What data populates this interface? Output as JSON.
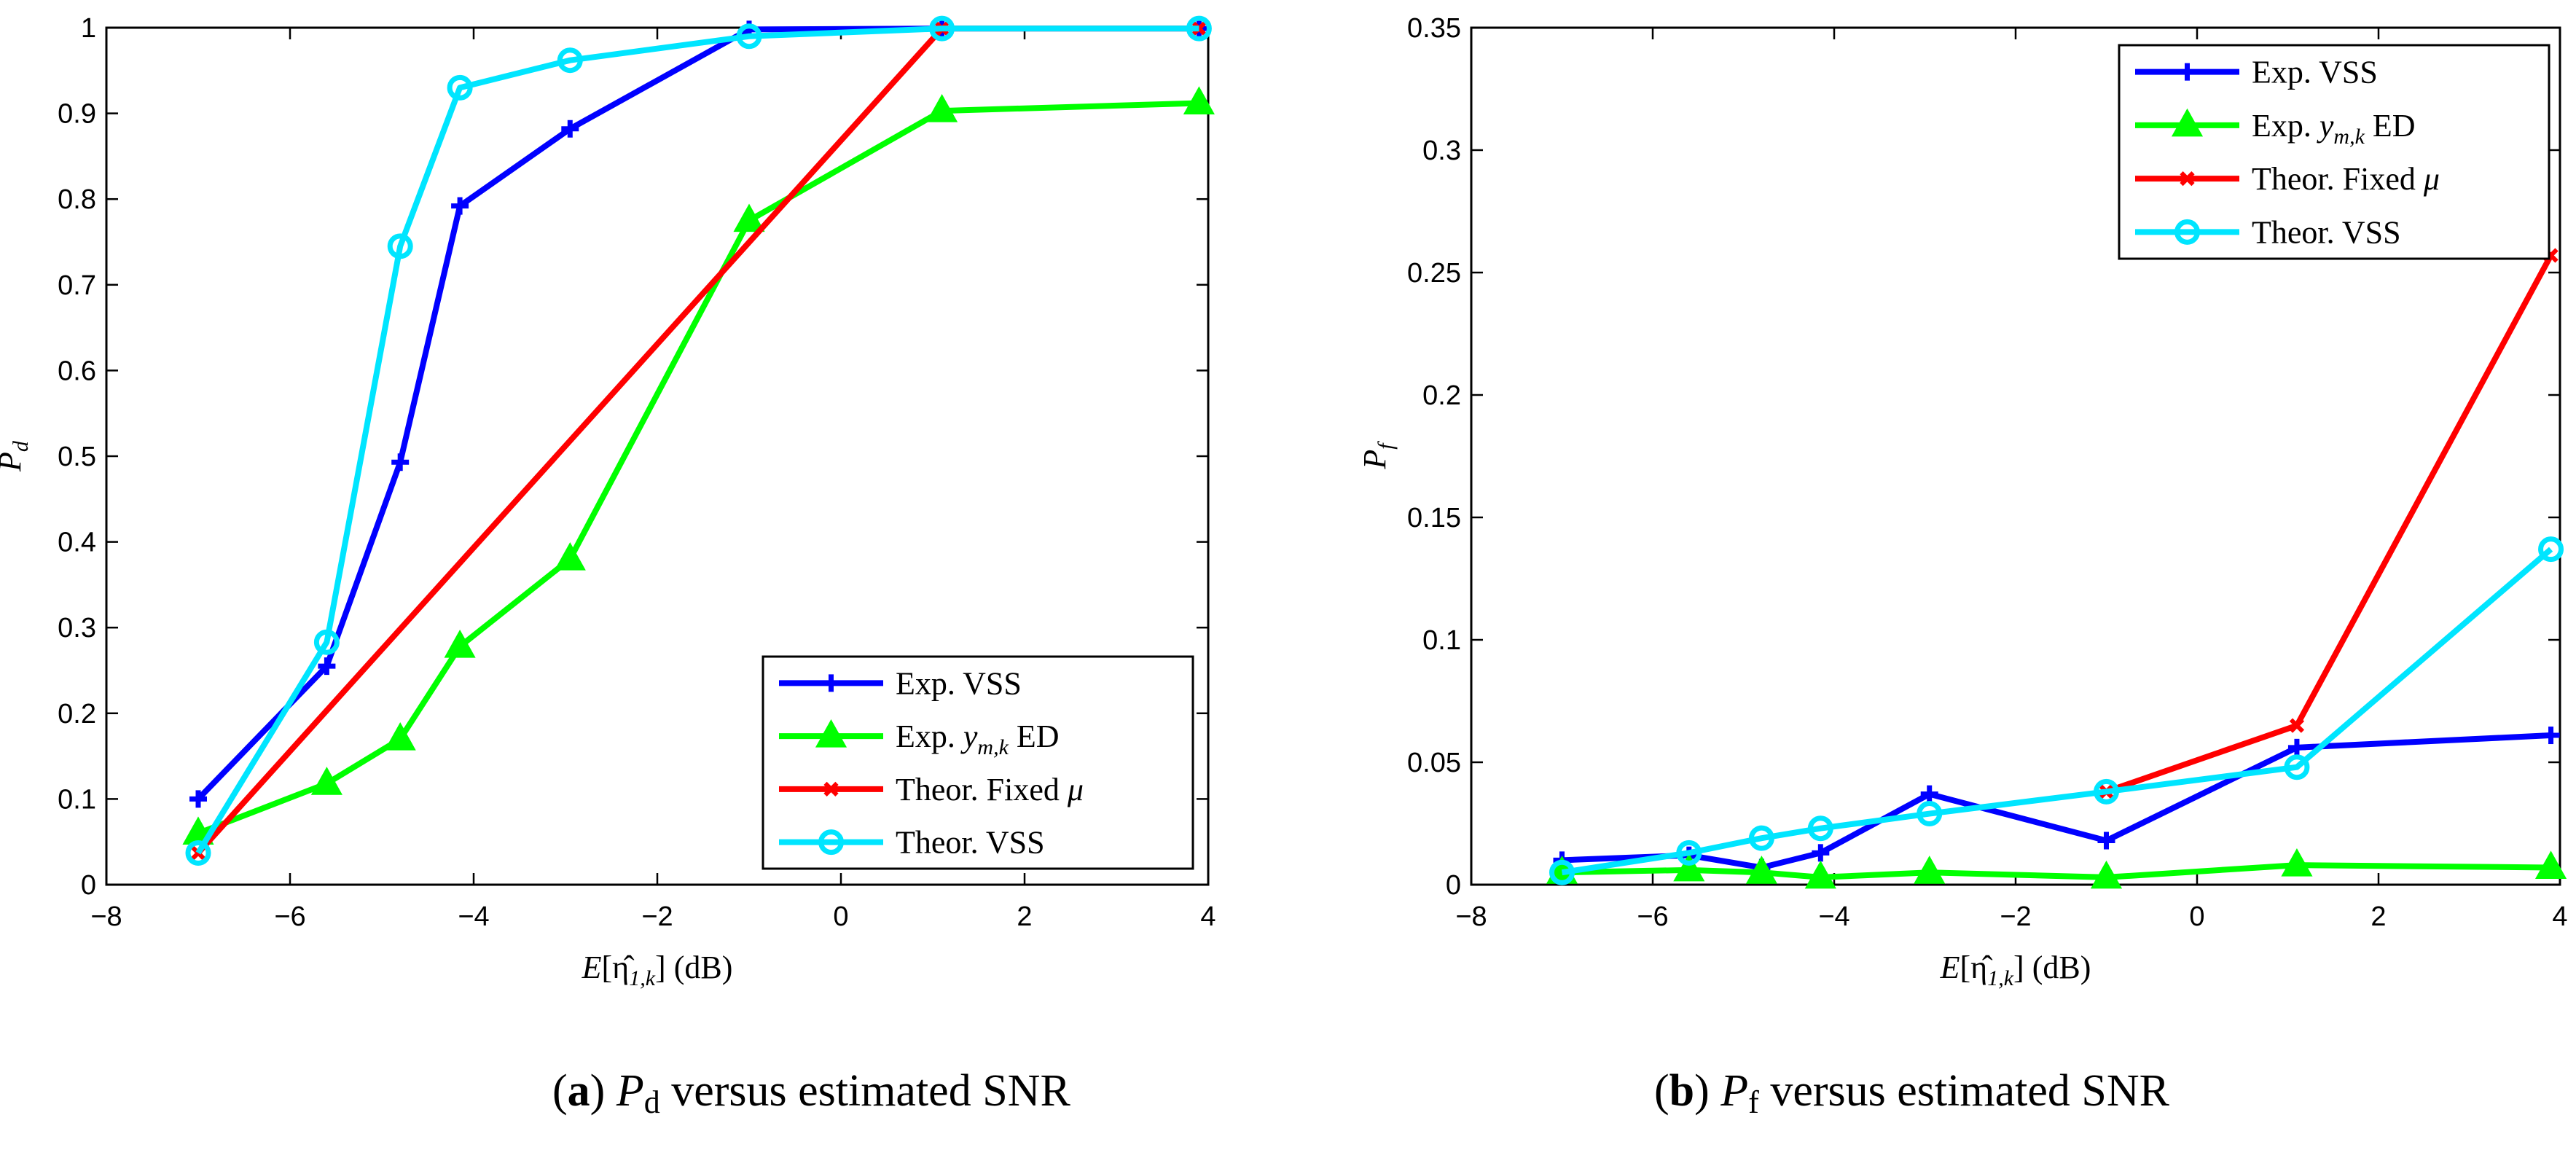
{
  "chart_data": [
    {
      "type": "line",
      "title": "",
      "xlabel": "E[η̂1,k] (dB)",
      "ylabel": "Pd",
      "xlim": [
        -8,
        4
      ],
      "ylim": [
        0,
        1
      ],
      "xticks": [
        -8,
        -6,
        -4,
        -2,
        0,
        2,
        4
      ],
      "yticks": [
        0,
        0.1,
        0.2,
        0.3,
        0.4,
        0.5,
        0.6,
        0.7,
        0.8,
        0.9,
        1
      ],
      "legend_position": "bottom-right",
      "series": [
        {
          "name": "Exp.  VSS",
          "color": "#0000ff",
          "marker": "plus",
          "x": [
            -7.0,
            -5.6,
            -4.8,
            -4.15,
            -2.95,
            -1.0,
            1.1,
            3.9
          ],
          "y": [
            0.1,
            0.255,
            0.493,
            0.792,
            0.882,
            0.998,
            0.999,
            0.999
          ]
        },
        {
          "name": "Exp.  y m,k  ED",
          "color": "#00ff00",
          "marker": "triangle",
          "x": [
            -7.0,
            -5.6,
            -4.8,
            -4.15,
            -2.95,
            -1.0,
            1.1,
            3.9
          ],
          "y": [
            0.06,
            0.118,
            0.17,
            0.278,
            0.38,
            0.775,
            0.903,
            0.912
          ]
        },
        {
          "name": "Theor.  Fixed μ",
          "color": "#ff0000",
          "marker": "x",
          "x": [
            -7.0,
            1.1,
            3.9
          ],
          "y": [
            0.037,
            0.999,
            0.999
          ]
        },
        {
          "name": "Theor.  VSS",
          "color": "#00e5ff",
          "marker": "circle",
          "x": [
            -7.0,
            -5.6,
            -4.8,
            -4.15,
            -2.95,
            -1.0,
            1.1,
            3.9
          ],
          "y": [
            0.037,
            0.283,
            0.745,
            0.93,
            0.962,
            0.99,
            0.999,
            0.999
          ]
        }
      ]
    },
    {
      "type": "line",
      "title": "",
      "xlabel": "E[η̂1,k] (dB)",
      "ylabel": "Pf",
      "xlim": [
        -8,
        4
      ],
      "ylim": [
        0,
        0.35
      ],
      "xticks": [
        -8,
        -6,
        -4,
        -2,
        0,
        2,
        4
      ],
      "yticks": [
        0,
        0.05,
        0.1,
        0.15,
        0.2,
        0.25,
        0.3,
        0.35
      ],
      "legend_position": "top-right",
      "series": [
        {
          "name": "Exp.  VSS",
          "color": "#0000ff",
          "marker": "plus",
          "x": [
            -7.0,
            -5.6,
            -4.8,
            -4.15,
            -2.95,
            -1.0,
            1.1,
            3.9
          ],
          "y": [
            0.01,
            0.012,
            0.007,
            0.013,
            0.037,
            0.018,
            0.056,
            0.061
          ]
        },
        {
          "name": "Exp.  y m,k  ED",
          "color": "#00ff00",
          "marker": "triangle",
          "x": [
            -7.0,
            -5.6,
            -4.8,
            -4.15,
            -2.95,
            -1.0,
            1.1,
            3.9
          ],
          "y": [
            0.005,
            0.006,
            0.005,
            0.003,
            0.005,
            0.003,
            0.008,
            0.007
          ]
        },
        {
          "name": "Theor.  Fixed μ",
          "color": "#ff0000",
          "marker": "x",
          "x": [
            -1.0,
            1.1,
            3.9
          ],
          "y": [
            0.038,
            0.065,
            0.257
          ]
        },
        {
          "name": "Theor.  VSS",
          "color": "#00e5ff",
          "marker": "circle",
          "x": [
            -7.0,
            -5.6,
            -4.8,
            -4.15,
            -2.95,
            -1.0,
            1.1,
            3.9
          ],
          "y": [
            0.005,
            0.013,
            0.019,
            0.023,
            0.029,
            0.038,
            0.048,
            0.137
          ]
        }
      ]
    }
  ],
  "legend_labels": {
    "exp_vss": "Exp.  VSS",
    "exp_ed_prefix": "Exp.",
    "exp_ed_var": "y",
    "exp_ed_sub": "m,k",
    "exp_ed_suffix": "ED",
    "theor_fixed": "Theor.  Fixed",
    "theor_fixed_mu": "μ",
    "theor_vss": "Theor.  VSS"
  },
  "axis_text": {
    "xlabel_E": "E",
    "xlabel_eta": "[η̂",
    "xlabel_sub": "1,k",
    "xlabel_close": "]",
    "xlabel_unit": "(dB)",
    "ylabel_a": "P",
    "ylabel_a_sub": "d",
    "ylabel_b": "P",
    "ylabel_b_sub": "f"
  },
  "captions": {
    "a_letter": "a",
    "a_symbol": "P",
    "a_sub": "d",
    "a_text": "versus estimated SNR",
    "b_letter": "b",
    "b_symbol": "P",
    "b_sub": "f",
    "b_text": "versus estimated SNR"
  }
}
